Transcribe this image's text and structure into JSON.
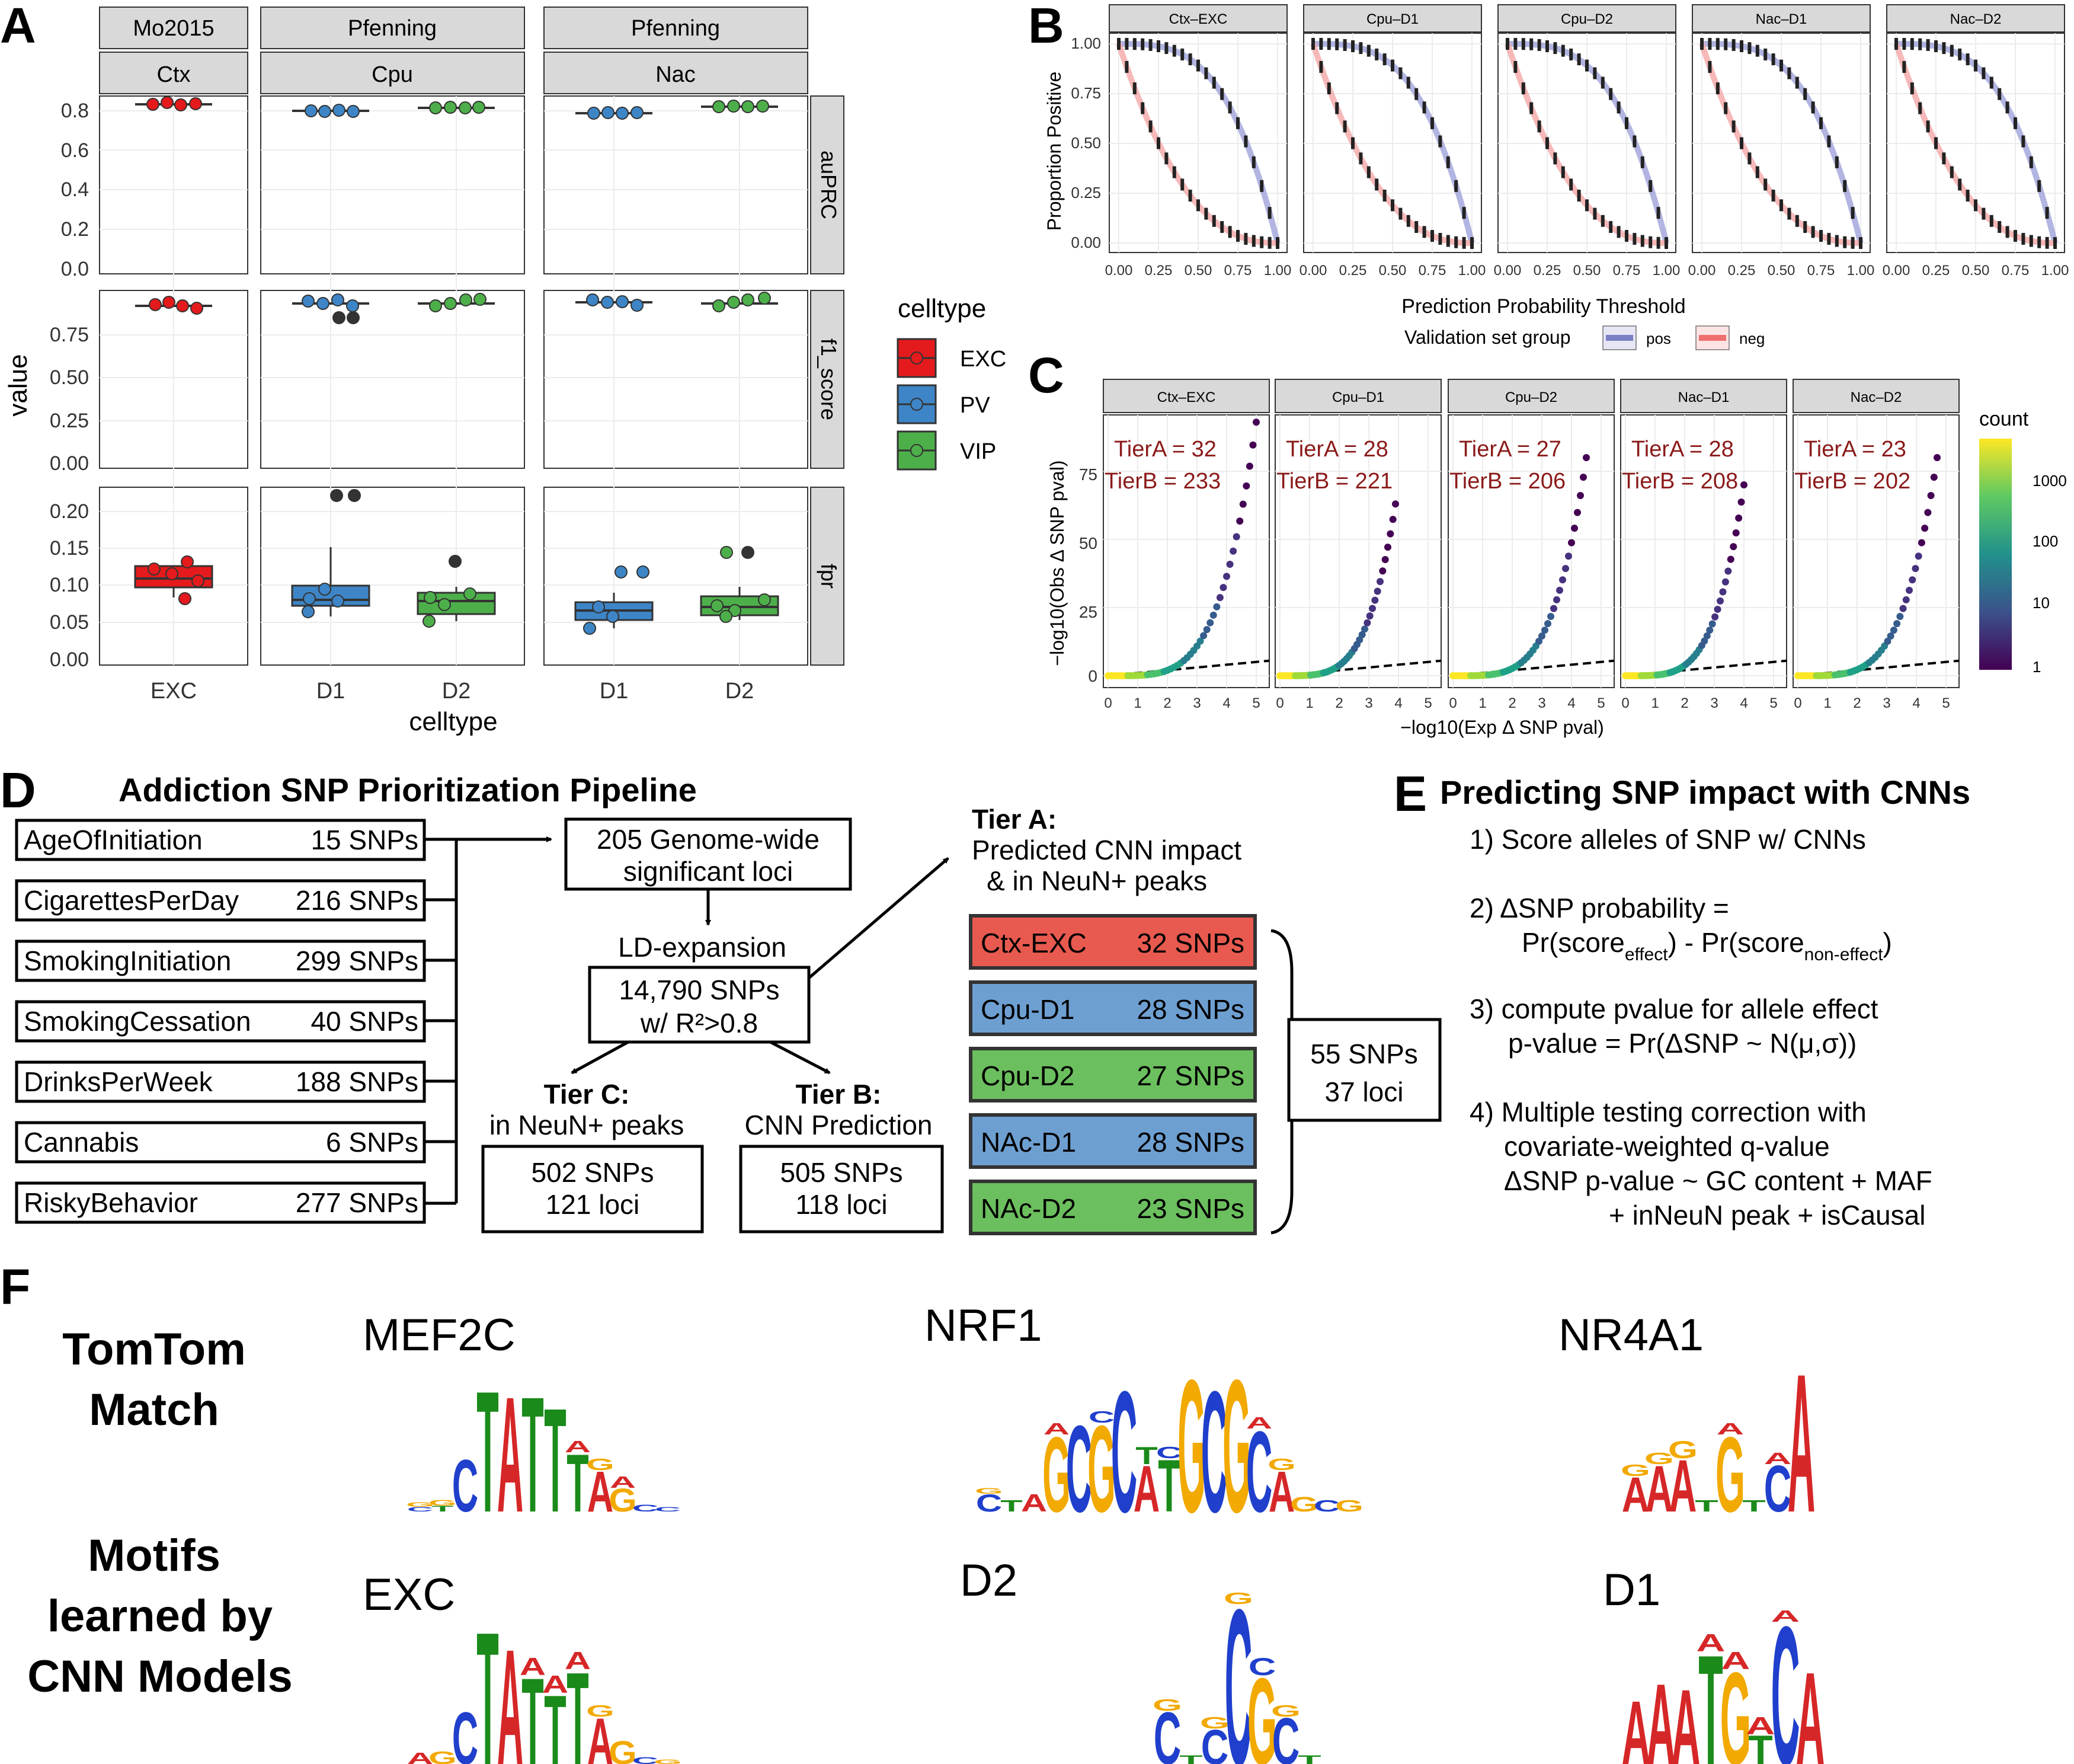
{
  "panel_labels": {
    "a": "A",
    "b": "B",
    "c": "C",
    "d": "D",
    "e": "E",
    "f": "F"
  },
  "panel_a": {
    "top_strips": [
      "Mo2015",
      "Pfenning",
      "Pfenning"
    ],
    "sub_strips": [
      "Ctx",
      "Cpu",
      "Nac"
    ],
    "row_strips": [
      "auPRC",
      "f1_score",
      "fpr"
    ],
    "ylabel": "value",
    "xlabel": "celltype",
    "x_ticks": [
      "EXC",
      "D1",
      "D2",
      "D1",
      "D2"
    ],
    "y_ticks_auprc": [
      "0.8",
      "0.6",
      "0.4",
      "0.2",
      "0.0"
    ],
    "y_ticks_f1": [
      "0.75",
      "0.50",
      "0.25",
      "0.00"
    ],
    "y_ticks_fpr": [
      "0.20",
      "0.15",
      "0.10",
      "0.05",
      "0.00"
    ],
    "legend_title": "celltype",
    "legend_items": [
      "EXC",
      "PV",
      "VIP"
    ]
  },
  "panel_b": {
    "strips": [
      "Ctx–EXC",
      "Cpu–D1",
      "Cpu–D2",
      "Nac–D1",
      "Nac–D2"
    ],
    "ylabel": "Proportion Positive",
    "xlabel": "Prediction Probability Threshold",
    "y_ticks": [
      "1.00",
      "0.75",
      "0.50",
      "0.25",
      "0.00"
    ],
    "x_ticks": [
      "0.00",
      "0.25",
      "0.50",
      "0.75",
      "1.00"
    ],
    "legend_title": "Validation set group",
    "legend_items": [
      "pos",
      "neg"
    ]
  },
  "panel_c": {
    "strips": [
      "Ctx–EXC",
      "Cpu–D1",
      "Cpu–D2",
      "Nac–D1",
      "Nac–D2"
    ],
    "tierA": [
      "TierA = 32",
      "TierA = 28",
      "TierA = 27",
      "TierA = 28",
      "TierA = 23"
    ],
    "tierB": [
      "TierB = 233",
      "TierB = 221",
      "TierB = 206",
      "TierB = 208",
      "TierB = 202"
    ],
    "ylabel": "−log10(Obs Δ SNP pval)",
    "xlabel": "−log10(Exp Δ SNP pval)",
    "y_ticks": [
      "75",
      "50",
      "25",
      "0"
    ],
    "x_ticks": [
      "0",
      "1",
      "2",
      "3",
      "4",
      "5"
    ],
    "legend_title": "count",
    "legend_ticks": [
      "1000",
      "100",
      "10",
      "1"
    ]
  },
  "panel_d": {
    "title": "Addiction SNP Prioritization Pipeline",
    "traits": [
      {
        "name": "AgeOfInitiation",
        "snps": "15 SNPs"
      },
      {
        "name": "CigarettesPerDay",
        "snps": "216 SNPs"
      },
      {
        "name": "SmokingInitiation",
        "snps": "299 SNPs"
      },
      {
        "name": "SmokingCessation",
        "snps": "40 SNPs"
      },
      {
        "name": "DrinksPerWeek",
        "snps": "188 SNPs"
      },
      {
        "name": "Cannabis",
        "snps": "6 SNPs"
      },
      {
        "name": "RiskyBehavior",
        "snps": "277 SNPs"
      }
    ],
    "gw_box": [
      "205 Genome-wide",
      "significant loci"
    ],
    "ld_label": "LD-expansion",
    "ld_box": [
      "14,790 SNPs",
      "w/ R²>0.8"
    ],
    "tierA_title": "Tier A:",
    "tierA_desc": [
      "Predicted CNN impact",
      "& in NeuN+ peaks"
    ],
    "tierA_items": [
      {
        "name": "Ctx-EXC",
        "snps": "32 SNPs",
        "color": "#e85a4f"
      },
      {
        "name": "Cpu-D1",
        "snps": "28 SNPs",
        "color": "#6e9fd1"
      },
      {
        "name": "Cpu-D2",
        "snps": "27 SNPs",
        "color": "#6cbf5e"
      },
      {
        "name": "NAc-D1",
        "snps": "28 SNPs",
        "color": "#6e9fd1"
      },
      {
        "name": "NAc-D2",
        "snps": "23 SNPs",
        "color": "#6cbf5e"
      }
    ],
    "tierA_total": [
      "55 SNPs",
      "37 loci"
    ],
    "tierC_title": "Tier C:",
    "tierC_desc": "in NeuN+ peaks",
    "tierC_box": [
      "502 SNPs",
      "121 loci"
    ],
    "tierB_title": "Tier B:",
    "tierB_desc": "CNN Prediction",
    "tierB_box": [
      "505 SNPs",
      "118 loci"
    ]
  },
  "panel_e": {
    "title": "Predicting SNP impact with CNNs",
    "step1": "1) Score alleles of SNP w/ CNNs",
    "step2a": "2) ΔSNP probability =",
    "step2b_pr1": "Pr(score",
    "step2b_sub1": "effect",
    "step2b_mid": ") - Pr(score",
    "step2b_sub2": "non-effect",
    "step2b_end": ")",
    "step3a": "3) compute pvalue for allele effect",
    "step3b": "p-value = Pr(ΔSNP ~ N(μ,σ))",
    "step4a": "4) Multiple testing correction with",
    "step4b": "covariate-weighted q-value",
    "step4c": "ΔSNP p-value ~ GC content + MAF",
    "step4d": "+ inNeuN peak + isCausal"
  },
  "panel_f": {
    "row1_label": [
      "TomTom",
      "Match"
    ],
    "row2_label": [
      "Motifs",
      "learned by",
      "CNN Models"
    ],
    "top_names": [
      "MEF2C",
      "NRF1",
      "NR4A1"
    ],
    "bottom_names": [
      "EXC",
      "D2",
      "D1"
    ]
  }
}
